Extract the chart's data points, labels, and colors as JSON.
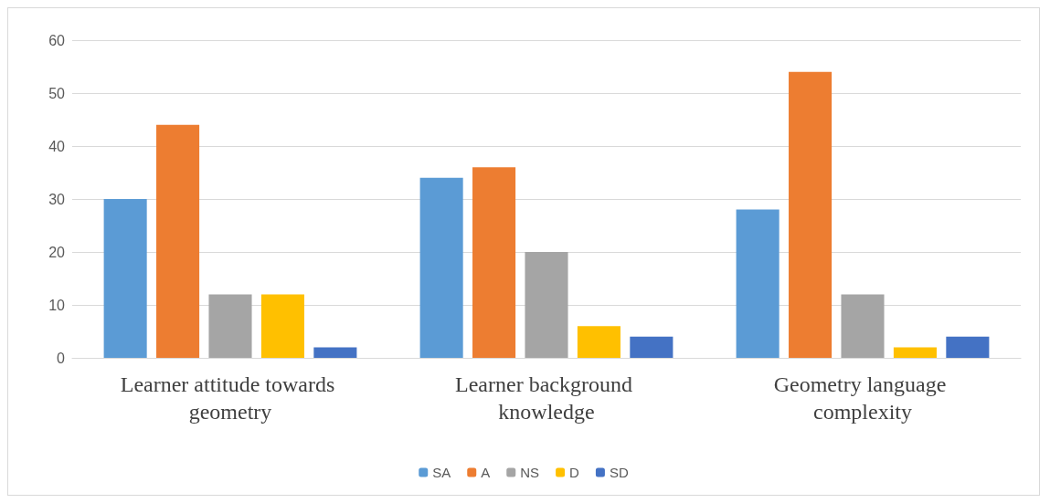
{
  "chart_data": {
    "type": "bar",
    "categories": [
      "Learner attitude towards geometry",
      "Learner background knowledge",
      "Geometry language complexity"
    ],
    "series": [
      {
        "name": "SA",
        "color": "#5b9bd5",
        "values": [
          30,
          34,
          28
        ]
      },
      {
        "name": "A",
        "color": "#ed7d31",
        "values": [
          44,
          36,
          54
        ]
      },
      {
        "name": "NS",
        "color": "#a5a5a5",
        "values": [
          12,
          20,
          12
        ]
      },
      {
        "name": "D",
        "color": "#ffc000",
        "values": [
          12,
          6,
          2
        ]
      },
      {
        "name": "SD",
        "color": "#4472c4",
        "values": [
          2,
          4,
          4
        ]
      }
    ],
    "ylim": [
      0,
      60
    ],
    "yticks": [
      0,
      10,
      20,
      30,
      40,
      50,
      60
    ],
    "grid": "y",
    "legend": "bottom"
  }
}
